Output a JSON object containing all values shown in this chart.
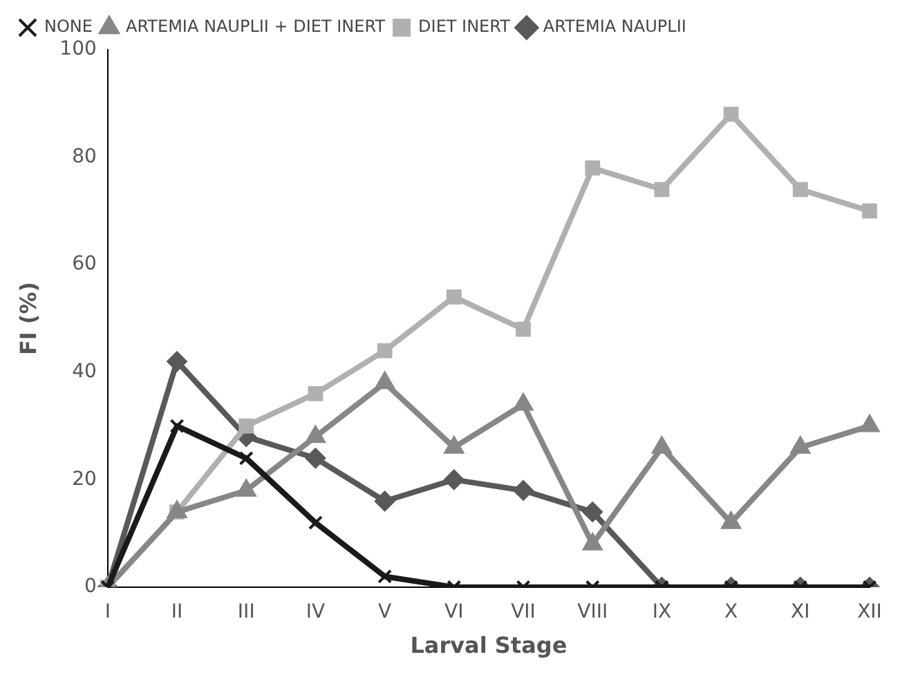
{
  "chart_data": {
    "type": "line",
    "xlabel": "Larval Stage",
    "ylabel": "FI (%)",
    "categories": [
      "I",
      "II",
      "III",
      "IV",
      "V",
      "VI",
      "VII",
      "VIII",
      "IX",
      "X",
      "XI",
      "XII"
    ],
    "series": [
      {
        "name": "ARTEMIA NAUPLII",
        "color": "#595959",
        "marker": "diamond",
        "values": [
          0,
          42,
          28,
          24,
          16,
          20,
          18,
          14,
          0,
          0,
          0,
          0
        ]
      },
      {
        "name": "DIET INERT",
        "color": "#b0b0b0",
        "marker": "square",
        "values": [
          0,
          14,
          30,
          36,
          44,
          54,
          48,
          78,
          74,
          88,
          74,
          70
        ]
      },
      {
        "name": "ARTEMIA NAUPLII + DIET INERT",
        "color": "#878787",
        "marker": "triangle",
        "values": [
          0,
          14,
          18,
          28,
          38,
          26,
          34,
          8,
          26,
          12,
          26,
          30
        ]
      },
      {
        "name": "NONE",
        "color": "#1a1a1a",
        "marker": "cross",
        "values": [
          0,
          30,
          24,
          12,
          2,
          0,
          0,
          0,
          0,
          0,
          0,
          0
        ]
      }
    ],
    "ylim": [
      0,
      100
    ],
    "yticks": [
      0,
      20,
      40,
      60,
      80,
      100
    ],
    "grid": false,
    "legend": "top left",
    "line_style": "solid"
  }
}
